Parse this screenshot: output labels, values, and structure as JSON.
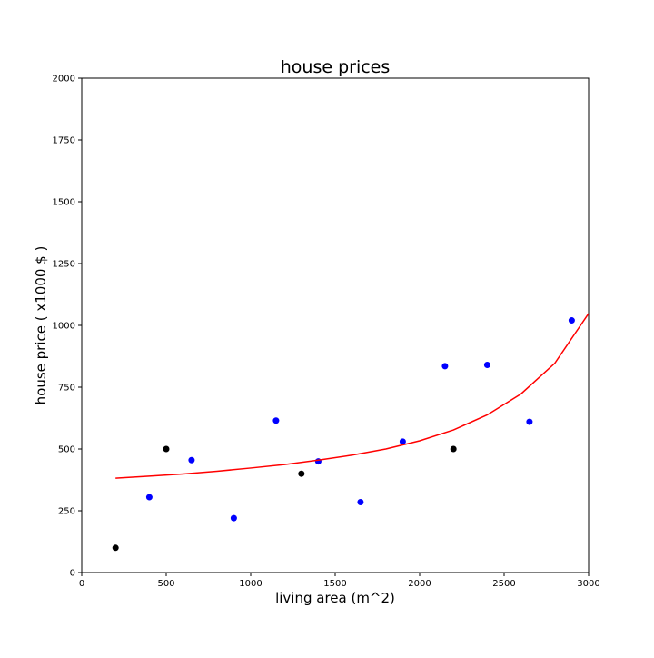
{
  "chart_data": {
    "type": "scatter",
    "title": "house prices",
    "xlabel": "living area (m^2)",
    "ylabel": "house price ( x1000 $ )",
    "xlim": [
      0,
      3000
    ],
    "ylim": [
      0,
      2000
    ],
    "xticks": [
      0,
      500,
      1000,
      1500,
      2000,
      2500,
      3000
    ],
    "yticks": [
      0,
      250,
      500,
      750,
      1000,
      1250,
      1500,
      1750,
      2000
    ],
    "grid": false,
    "series": [
      {
        "type": "scatter",
        "color": "#0000ff",
        "points": [
          [
            400,
            305
          ],
          [
            650,
            455
          ],
          [
            900,
            220
          ],
          [
            1150,
            615
          ],
          [
            1400,
            450
          ],
          [
            1650,
            285
          ],
          [
            1900,
            530
          ],
          [
            2150,
            835
          ],
          [
            2400,
            840
          ],
          [
            2650,
            610
          ],
          [
            2900,
            1020
          ]
        ]
      },
      {
        "type": "scatter",
        "color": "#000000",
        "points": [
          [
            200,
            100
          ],
          [
            500,
            500
          ],
          [
            1300,
            400
          ],
          [
            2200,
            500
          ]
        ]
      },
      {
        "type": "line",
        "color": "#ff0000",
        "points": [
          [
            200,
            382
          ],
          [
            400,
            390
          ],
          [
            600,
            399
          ],
          [
            800,
            410
          ],
          [
            1000,
            423
          ],
          [
            1200,
            437
          ],
          [
            1400,
            455
          ],
          [
            1600,
            475
          ],
          [
            1800,
            500
          ],
          [
            2000,
            533
          ],
          [
            2200,
            577
          ],
          [
            2400,
            638
          ],
          [
            2600,
            723
          ],
          [
            2800,
            847
          ],
          [
            3000,
            1048
          ]
        ]
      }
    ]
  }
}
